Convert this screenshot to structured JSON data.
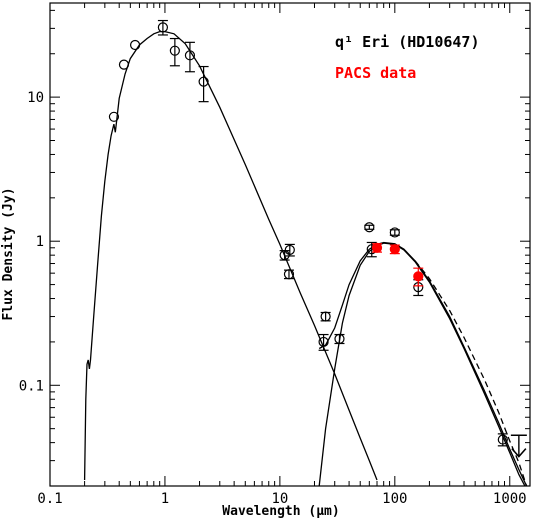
{
  "chart_data": {
    "type": "scatter",
    "title": "",
    "xlabel": "Wavelength (μm)",
    "ylabel": "Flux Density (Jy)",
    "xscale": "log",
    "yscale": "log",
    "xlim": [
      0.1,
      1500
    ],
    "ylim": [
      0.02,
      45
    ],
    "x_ticks": [
      {
        "value": 0.1,
        "label": "0.1"
      },
      {
        "value": 1,
        "label": "1"
      },
      {
        "value": 10,
        "label": "10"
      },
      {
        "value": 100,
        "label": "100"
      },
      {
        "value": 1000,
        "label": "1000"
      }
    ],
    "y_ticks": [
      {
        "value": 0.1,
        "label": "0.1"
      },
      {
        "value": 1,
        "label": "1"
      },
      {
        "value": 10,
        "label": "10"
      }
    ],
    "legend": [
      {
        "label": "q¹ Eri (HD10647)",
        "color": "#000000"
      },
      {
        "label": "PACS data",
        "color": "#ff0000"
      }
    ],
    "legend_position": "top-right",
    "series": [
      {
        "marker": "open-circle",
        "color": "#000000",
        "points": [
          {
            "x": 0.36,
            "y": 7.3,
            "err": 0
          },
          {
            "x": 0.44,
            "y": 16.8,
            "err": 0
          },
          {
            "x": 0.55,
            "y": 23.0,
            "err": 0
          },
          {
            "x": 0.96,
            "y": 30.5,
            "err": 3.5
          },
          {
            "x": 1.22,
            "y": 21.0,
            "err": 4.5
          },
          {
            "x": 1.65,
            "y": 19.5,
            "err": 4.5
          },
          {
            "x": 2.17,
            "y": 12.8,
            "err": 3.5
          },
          {
            "x": 11.0,
            "y": 0.8,
            "err": 0.06
          },
          {
            "x": 12.0,
            "y": 0.59,
            "err": 0.04
          },
          {
            "x": 12.2,
            "y": 0.87,
            "err": 0.08
          },
          {
            "x": 24.0,
            "y": 0.2,
            "err": 0.025
          },
          {
            "x": 25.0,
            "y": 0.3,
            "err": 0.02
          },
          {
            "x": 33.0,
            "y": 0.21,
            "err": 0.015
          },
          {
            "x": 60.0,
            "y": 1.25,
            "err": 0.04
          },
          {
            "x": 63.0,
            "y": 0.88,
            "err": 0.1
          },
          {
            "x": 100.0,
            "y": 1.15,
            "err": 0.05
          },
          {
            "x": 160.0,
            "y": 0.48,
            "err": 0.06
          },
          {
            "x": 870.0,
            "y": 0.042,
            "err": 0.004
          }
        ]
      },
      {
        "name": "PACS data",
        "marker": "filled-circle",
        "color": "#ff0000",
        "points": [
          {
            "x": 70.0,
            "y": 0.9,
            "err": 0.06
          },
          {
            "x": 100.0,
            "y": 0.88,
            "err": 0.06
          },
          {
            "x": 160.0,
            "y": 0.57,
            "err": 0.08
          }
        ]
      }
    ],
    "upper_limits": [
      {
        "x": 1200.0,
        "y": 0.045,
        "y_end": 0.032
      }
    ],
    "curves": [
      {
        "style": "solid",
        "points": [
          [
            0.2,
            0.022
          ],
          [
            0.205,
            0.08
          ],
          [
            0.21,
            0.14
          ],
          [
            0.215,
            0.15
          ],
          [
            0.22,
            0.13
          ],
          [
            0.225,
            0.15
          ],
          [
            0.24,
            0.3
          ],
          [
            0.26,
            0.7
          ],
          [
            0.28,
            1.5
          ],
          [
            0.3,
            2.6
          ],
          [
            0.32,
            4.0
          ],
          [
            0.34,
            5.4
          ],
          [
            0.36,
            6.5
          ],
          [
            0.37,
            5.7
          ],
          [
            0.38,
            6.8
          ],
          [
            0.4,
            9.8
          ],
          [
            0.45,
            14.5
          ],
          [
            0.5,
            18.5
          ],
          [
            0.6,
            23.0
          ],
          [
            0.7,
            25.5
          ],
          [
            0.8,
            27.5
          ],
          [
            0.9,
            28.5
          ],
          [
            1.0,
            28.5
          ],
          [
            1.2,
            27.5
          ],
          [
            1.5,
            23.5
          ],
          [
            2.0,
            16.5
          ],
          [
            3.0,
            8.5
          ],
          [
            5.0,
            3.4
          ],
          [
            8.0,
            1.42
          ],
          [
            10.0,
            0.95
          ],
          [
            15.0,
            0.44
          ],
          [
            20.0,
            0.26
          ],
          [
            25.0,
            0.17
          ],
          [
            30.0,
            0.12
          ],
          [
            40.0,
            0.067
          ],
          [
            50.0,
            0.043
          ],
          [
            60.0,
            0.03
          ],
          [
            70.0,
            0.022
          ]
        ]
      },
      {
        "style": "solid",
        "points": [
          [
            22.0,
            0.02
          ],
          [
            25.0,
            0.05
          ],
          [
            30.0,
            0.13
          ],
          [
            35.0,
            0.27
          ],
          [
            40.0,
            0.42
          ],
          [
            50.0,
            0.68
          ],
          [
            60.0,
            0.85
          ],
          [
            70.0,
            0.93
          ],
          [
            80.0,
            0.97
          ],
          [
            100.0,
            0.95
          ],
          [
            120.0,
            0.87
          ],
          [
            150.0,
            0.72
          ],
          [
            200.0,
            0.52
          ],
          [
            300.0,
            0.29
          ],
          [
            400.0,
            0.18
          ],
          [
            600.0,
            0.088
          ],
          [
            800.0,
            0.052
          ],
          [
            1000.0,
            0.034
          ],
          [
            1200.0,
            0.024
          ],
          [
            1400.0,
            0.019
          ]
        ]
      },
      {
        "style": "solid",
        "points": [
          [
            22.0,
            0.18
          ],
          [
            25.0,
            0.19
          ],
          [
            30.0,
            0.25
          ],
          [
            35.0,
            0.36
          ],
          [
            40.0,
            0.5
          ],
          [
            50.0,
            0.73
          ],
          [
            60.0,
            0.88
          ],
          [
            70.0,
            0.95
          ],
          [
            80.0,
            0.98
          ],
          [
            100.0,
            0.96
          ],
          [
            120.0,
            0.88
          ],
          [
            150.0,
            0.73
          ],
          [
            200.0,
            0.53
          ],
          [
            300.0,
            0.3
          ],
          [
            400.0,
            0.185
          ],
          [
            600.0,
            0.092
          ],
          [
            800.0,
            0.055
          ],
          [
            1000.0,
            0.036
          ],
          [
            1200.0,
            0.026
          ],
          [
            1400.0,
            0.02
          ]
        ]
      },
      {
        "style": "dashed",
        "points": [
          [
            150.0,
            0.73
          ],
          [
            200.0,
            0.55
          ],
          [
            300.0,
            0.33
          ],
          [
            400.0,
            0.215
          ],
          [
            600.0,
            0.11
          ],
          [
            800.0,
            0.065
          ],
          [
            1000.0,
            0.041
          ],
          [
            1200.0,
            0.029
          ],
          [
            1400.0,
            0.02
          ]
        ]
      }
    ]
  }
}
